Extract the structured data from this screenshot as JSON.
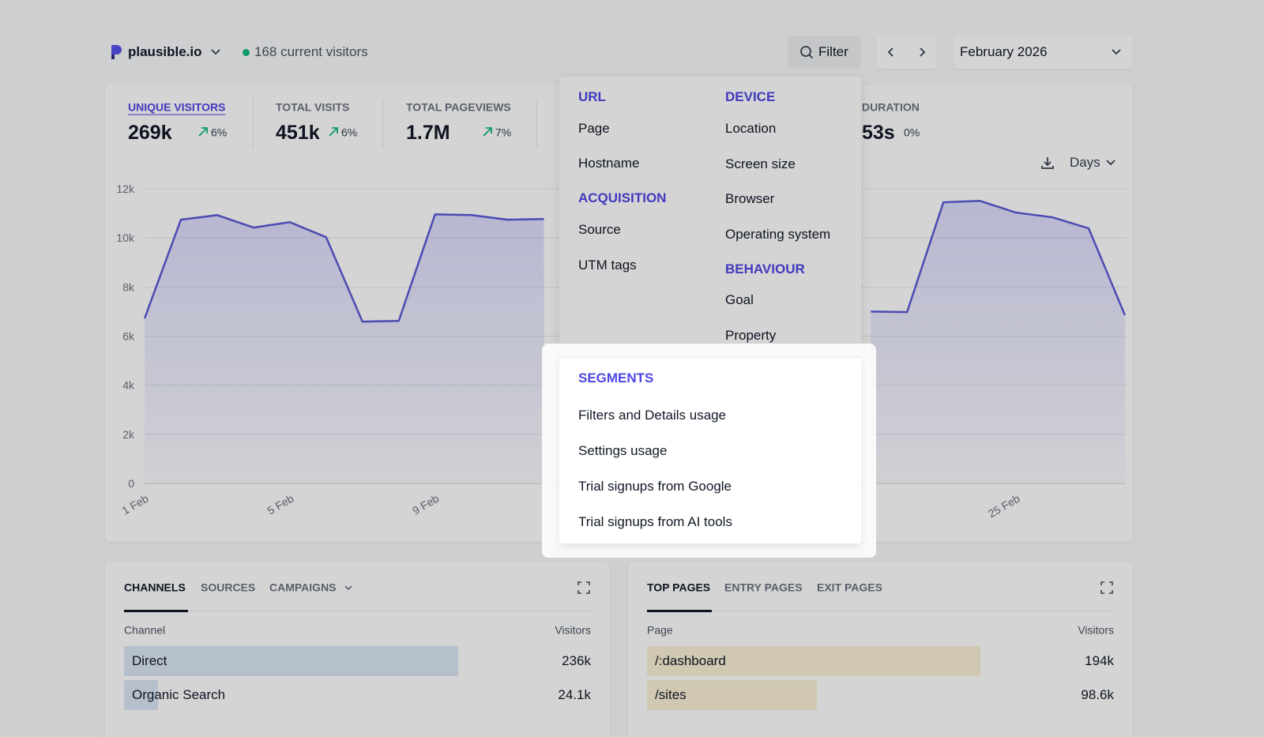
{
  "header": {
    "site": "plausible.io",
    "current_visitors": "168 current visitors",
    "filter_button": "Filter",
    "date_range": "February 2026"
  },
  "stats": [
    {
      "label": "UNIQUE VISITORS",
      "value": "269k",
      "change": "6%"
    },
    {
      "label": "TOTAL VISITS",
      "value": "451k",
      "change": "6%"
    },
    {
      "label": "TOTAL PAGEVIEWS",
      "value": "1.7M",
      "change": "7%"
    },
    {
      "label": "DURATION",
      "value": "53s",
      "change": "0%"
    }
  ],
  "interval": "Days",
  "chart_data": {
    "type": "line",
    "categories": [
      "1 Feb",
      null,
      null,
      null,
      "5 Feb",
      null,
      null,
      null,
      "9 Feb",
      null,
      null,
      null,
      null,
      null,
      null,
      null,
      null,
      null,
      null,
      null,
      null,
      null,
      null,
      null,
      "25 Feb",
      null,
      null,
      null
    ],
    "series": [
      {
        "name": "Unique visitors",
        "color": "#5b5bd6",
        "values": [
          6720,
          10740,
          10930,
          10420,
          10640,
          10030,
          6590,
          6620,
          10960,
          10930,
          10740,
          10770,
          null,
          null,
          null,
          null,
          null,
          null,
          null,
          null,
          7000,
          6980,
          11450,
          11510,
          11030,
          10840,
          10390,
          6850
        ]
      }
    ],
    "ylim": [
      0,
      12000
    ],
    "yticks": [
      0,
      {
        "value": 2000,
        "label": "2k"
      },
      {
        "value": 4000,
        "label": "4k"
      },
      {
        "value": 6000,
        "label": "6k"
      },
      {
        "value": 8000,
        "label": "8k"
      },
      {
        "value": 10000,
        "label": "10k"
      },
      {
        "value": 12000,
        "label": "12k"
      }
    ],
    "grid": true
  },
  "filter_menu": {
    "groups": [
      {
        "title": "URL",
        "items": [
          "Page",
          "Hostname"
        ]
      },
      {
        "title": "ACQUISITION",
        "items": [
          "Source",
          "UTM tags"
        ]
      },
      {
        "title": "DEVICE",
        "items": [
          "Location",
          "Screen size",
          "Browser",
          "Operating system"
        ]
      },
      {
        "title": "BEHAVIOUR",
        "items": [
          "Goal",
          "Property"
        ]
      },
      {
        "title": "SEGMENTS",
        "items": [
          "Filters and Details usage",
          "Settings usage",
          "Trial signups from Google",
          "Trial signups from AI tools"
        ]
      }
    ]
  },
  "panels": [
    {
      "tabs": [
        "CHANNELS",
        "SOURCES",
        "CAMPAIGNS"
      ],
      "columns": [
        "Channel",
        "Visitors"
      ],
      "rows": [
        [
          "Direct",
          "236k"
        ],
        [
          "Organic Search",
          "24.1k"
        ]
      ]
    },
    {
      "tabs": [
        "TOP PAGES",
        "ENTRY PAGES",
        "EXIT PAGES"
      ],
      "columns": [
        "Page",
        "Visitors"
      ],
      "rows": [
        [
          "/:dashboard",
          "194k"
        ],
        [
          "/sites",
          "98.6k"
        ]
      ]
    }
  ]
}
